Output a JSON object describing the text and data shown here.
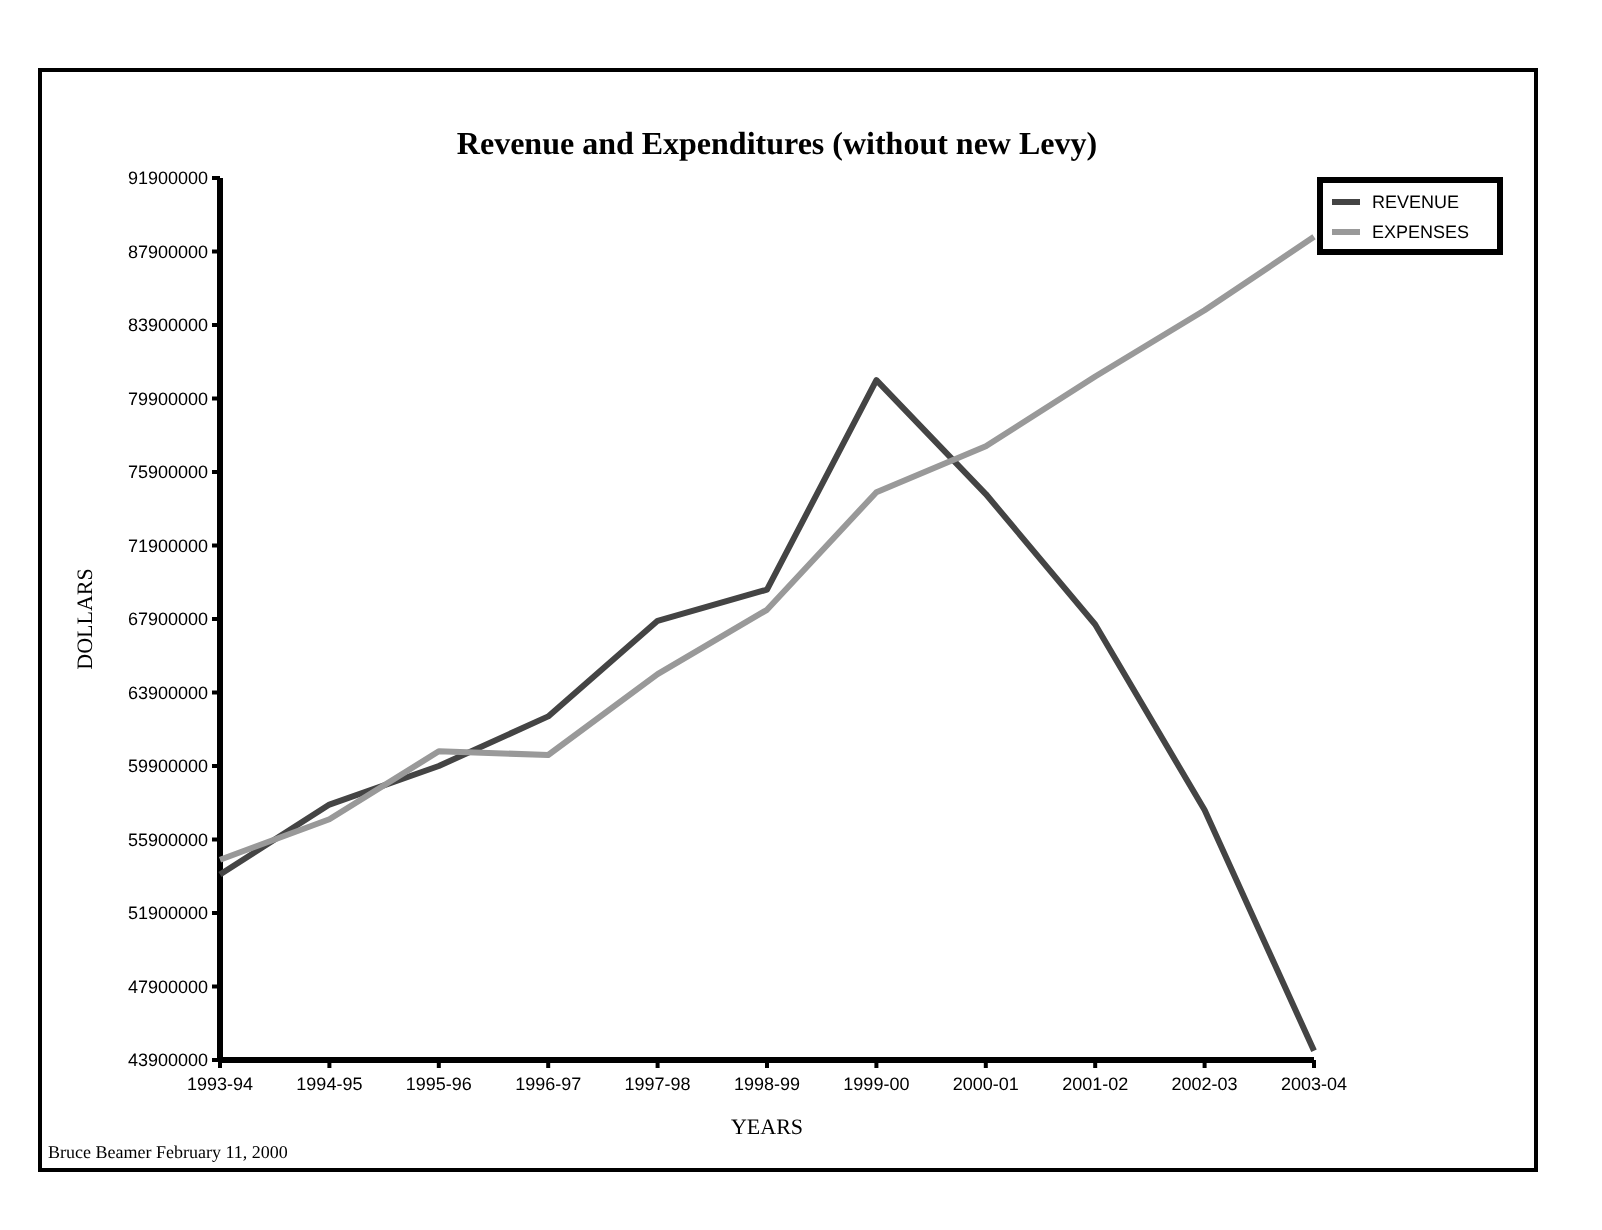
{
  "chart_data": {
    "type": "line",
    "title": "Revenue and Expenditures (without new Levy)",
    "xlabel": "YEARS",
    "ylabel": "DOLLARS",
    "categories": [
      "1993-94",
      "1994-95",
      "1995-96",
      "1996-97",
      "1997-98",
      "1998-99",
      "1999-00",
      "2000-01",
      "2001-02",
      "2002-03",
      "2003-04"
    ],
    "series": [
      {
        "name": "REVENUE",
        "color": "#444444",
        "values": [
          54000000,
          57800000,
          59900000,
          62600000,
          67800000,
          69500000,
          80900000,
          74700000,
          67600000,
          57500000,
          44400000
        ]
      },
      {
        "name": "EXPENSES",
        "color": "#999999",
        "values": [
          54800000,
          57000000,
          60700000,
          60500000,
          64900000,
          68400000,
          74800000,
          77300000,
          81100000,
          84700000,
          88700000
        ]
      }
    ],
    "ylim": [
      43900000,
      91900000
    ],
    "yticks": [
      43900000,
      47900000,
      51900000,
      55900000,
      59900000,
      63900000,
      67900000,
      71900000,
      75900000,
      79900000,
      83900000,
      87900000,
      91900000
    ],
    "grid": false,
    "legend": "top right",
    "marker": "none",
    "line_style": "solid",
    "annotations": [
      "Bruce Beamer February 11, 2000"
    ]
  }
}
